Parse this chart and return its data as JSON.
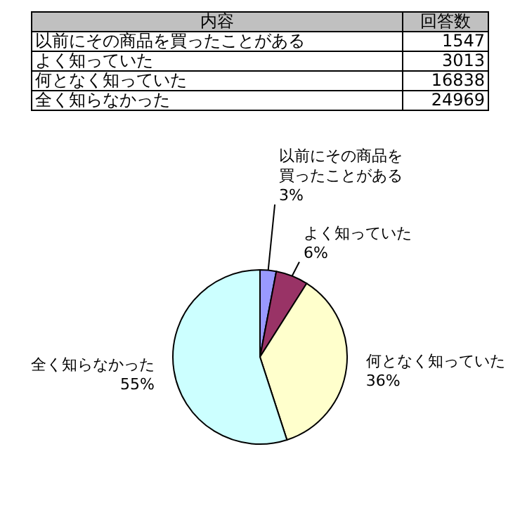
{
  "chart_data": [
    {
      "type": "other",
      "xlabel": "内容",
      "ylabel": "回答数",
      "categories": [
        "以前にその商品を買ったことがある",
        "よく知っていた",
        "何となく知っていた",
        "全く知らなかった"
      ],
      "values": [
        1547,
        3013,
        16838,
        24969
      ],
      "data_labels": true
    },
    {
      "type": "pie",
      "categories": [
        "以前にその商品を買ったことがある",
        "よく知っていた",
        "何となく知っていた",
        "全く知らなかった"
      ],
      "values": [
        3,
        6,
        36,
        55
      ],
      "value_labels": [
        "3%",
        "6%",
        "36%",
        "55%"
      ],
      "colors": [
        "#9999ff",
        "#993366",
        "#ffffcc",
        "#ccffff"
      ],
      "data_labels": true
    }
  ]
}
